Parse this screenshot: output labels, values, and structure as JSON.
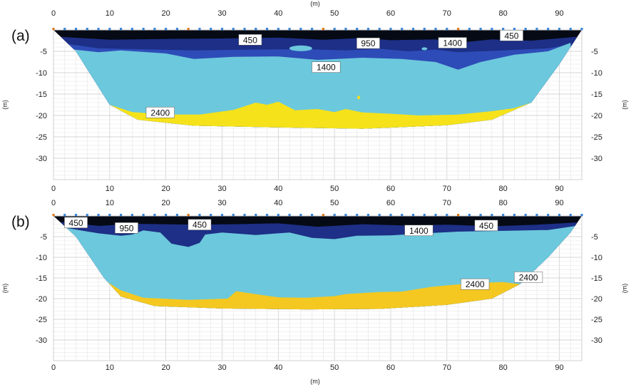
{
  "chart_data": [
    {
      "type": "area",
      "panel_label": "(a)",
      "top_axis_label": "(m)",
      "bottom_axis_label": "",
      "left_axis_label": "(m)",
      "right_axis_label": "(m)",
      "x_ticks": [
        0,
        10,
        20,
        30,
        40,
        50,
        60,
        70,
        80,
        90
      ],
      "y_ticks": [
        -5,
        -10,
        -15,
        -20,
        -25,
        -30
      ],
      "xlim": [
        0,
        94
      ],
      "ylim": [
        -35,
        0
      ],
      "grid": true,
      "layers": [
        {
          "velocity": 450,
          "color": "#050a14"
        },
        {
          "velocity": 950,
          "color": "#1d2f86"
        },
        {
          "velocity": 1400,
          "color": "#2e4cb8"
        },
        {
          "velocity": 1400,
          "color": "#6cc8dc"
        },
        {
          "velocity": 2400,
          "color": "#f6e21a"
        }
      ],
      "profile": {
        "surface": [
          [
            0,
            0
          ],
          [
            94,
            0
          ]
        ],
        "bottom": [
          [
            0,
            0
          ],
          [
            4,
            -5
          ],
          [
            10,
            -17.5
          ],
          [
            15,
            -21
          ],
          [
            25,
            -22.4
          ],
          [
            40,
            -22.8
          ],
          [
            55,
            -23.1
          ],
          [
            70,
            -22.3
          ],
          [
            78,
            -21
          ],
          [
            85,
            -17
          ],
          [
            90,
            -8
          ],
          [
            94,
            0
          ]
        ],
        "layer450_base": [
          [
            0,
            -1.5
          ],
          [
            10,
            -2.3
          ],
          [
            20,
            -2.1
          ],
          [
            30,
            -2
          ],
          [
            40,
            -1.8
          ],
          [
            48,
            -2.3
          ],
          [
            55,
            -1.9
          ],
          [
            60,
            -2.4
          ],
          [
            68,
            -2.2
          ],
          [
            72,
            -3
          ],
          [
            78,
            -2.2
          ],
          [
            85,
            -2.5
          ],
          [
            94,
            -1.5
          ]
        ],
        "layer950_base": [
          [
            1,
            -3
          ],
          [
            8,
            -4.3
          ],
          [
            15,
            -4.5
          ],
          [
            25,
            -4.8
          ],
          [
            35,
            -4.6
          ],
          [
            45,
            -4.5
          ],
          [
            52,
            -4.8
          ],
          [
            58,
            -4.4
          ],
          [
            63,
            -5
          ],
          [
            68,
            -4.6
          ],
          [
            72,
            -5.2
          ],
          [
            80,
            -4.8
          ],
          [
            88,
            -4.3
          ],
          [
            94,
            -3
          ]
        ],
        "layer1400a_base": [
          [
            3,
            -4.5
          ],
          [
            8,
            -5.2
          ],
          [
            12,
            -4.8
          ],
          [
            20,
            -5.5
          ],
          [
            25,
            -6.8
          ],
          [
            32,
            -6.3
          ],
          [
            40,
            -6.2
          ],
          [
            47,
            -7
          ],
          [
            55,
            -6.5
          ],
          [
            62,
            -6.8
          ],
          [
            68,
            -7.5
          ],
          [
            72,
            -9.3
          ],
          [
            76,
            -7.5
          ],
          [
            82,
            -5.8
          ],
          [
            88,
            -5
          ],
          [
            92,
            -3
          ]
        ],
        "layer2400_top": [
          [
            10,
            -17.5
          ],
          [
            14,
            -19.2
          ],
          [
            20,
            -19.8
          ],
          [
            26,
            -19.8
          ],
          [
            32,
            -18.7
          ],
          [
            36,
            -17
          ],
          [
            38,
            -17.5
          ],
          [
            40,
            -16.8
          ],
          [
            43,
            -18.8
          ],
          [
            47,
            -18.5
          ],
          [
            50,
            -19.2
          ],
          [
            52,
            -18.5
          ],
          [
            55,
            -19.3
          ],
          [
            60,
            -19.6
          ],
          [
            65,
            -20
          ],
          [
            72,
            -19.8
          ],
          [
            78,
            -19
          ],
          [
            82,
            -18.3
          ],
          [
            85,
            -17
          ]
        ]
      },
      "labels": [
        {
          "text": "450",
          "x": 35,
          "y": -2.3
        },
        {
          "text": "950",
          "x": 56,
          "y": -3.1
        },
        {
          "text": "1400",
          "x": 71,
          "y": -3
        },
        {
          "text": "450",
          "x": 81.5,
          "y": -1.3
        },
        {
          "text": "1400",
          "x": 48.5,
          "y": -8.7
        },
        {
          "text": "2400",
          "x": 19,
          "y": -19.3
        }
      ]
    },
    {
      "type": "area",
      "panel_label": "(b)",
      "top_axis_label": "",
      "bottom_axis_label": "(m)",
      "left_axis_label": "(m)",
      "right_axis_label": "(m)",
      "x_ticks": [
        0,
        10,
        20,
        30,
        40,
        50,
        60,
        70,
        80,
        90
      ],
      "y_ticks": [
        -5,
        -10,
        -15,
        -20,
        -25,
        -30
      ],
      "xlim": [
        0,
        94
      ],
      "ylim": [
        -35,
        0
      ],
      "grid": true,
      "layers": [
        {
          "velocity": 450,
          "color": "#050a14"
        },
        {
          "velocity": 950,
          "color": "#1d2f86"
        },
        {
          "velocity": 1400,
          "color": "#2e4cb8"
        },
        {
          "velocity": 1400,
          "color": "#6cc8dc"
        },
        {
          "velocity": 2400,
          "color": "#f4c820"
        }
      ],
      "profile": {
        "surface": [
          [
            0,
            0
          ],
          [
            94,
            0
          ]
        ],
        "bottom": [
          [
            0,
            0
          ],
          [
            4,
            -5
          ],
          [
            9,
            -15
          ],
          [
            12,
            -19.5
          ],
          [
            18,
            -21.8
          ],
          [
            30,
            -22.4
          ],
          [
            45,
            -22.6
          ],
          [
            58,
            -22.5
          ],
          [
            70,
            -21.5
          ],
          [
            78,
            -20
          ],
          [
            83,
            -16.5
          ],
          [
            88,
            -10
          ],
          [
            92,
            -4
          ],
          [
            94,
            0
          ]
        ],
        "layer450_base": [
          [
            0,
            -1.3
          ],
          [
            8,
            -2.4
          ],
          [
            15,
            -1.9
          ],
          [
            25,
            -2.1
          ],
          [
            32,
            -2
          ],
          [
            40,
            -1.8
          ],
          [
            47,
            -2.6
          ],
          [
            55,
            -2
          ],
          [
            62,
            -2.3
          ],
          [
            70,
            -2.1
          ],
          [
            78,
            -2.5
          ],
          [
            86,
            -2.1
          ],
          [
            94,
            -1.5
          ]
        ],
        "layer950_base": [
          [
            1,
            -2.6
          ],
          [
            8,
            -4.2
          ],
          [
            12,
            -4.8
          ],
          [
            14,
            -4.5
          ],
          [
            16,
            -3.5
          ],
          [
            19,
            -4
          ],
          [
            21,
            -6.7
          ],
          [
            24,
            -7.5
          ],
          [
            26,
            -6.5
          ],
          [
            27,
            -4.5
          ],
          [
            30,
            -4
          ],
          [
            36,
            -4.6
          ],
          [
            42,
            -4
          ],
          [
            46,
            -5.3
          ],
          [
            50,
            -5.6
          ],
          [
            54,
            -4.8
          ],
          [
            60,
            -4.7
          ],
          [
            66,
            -4.2
          ],
          [
            72,
            -3.8
          ],
          [
            80,
            -3.6
          ],
          [
            88,
            -3.4
          ],
          [
            94,
            -2.2
          ]
        ],
        "layer2400_top": [
          [
            9,
            -15.5
          ],
          [
            12,
            -18
          ],
          [
            16,
            -19.8
          ],
          [
            24,
            -20.3
          ],
          [
            31,
            -20
          ],
          [
            32.5,
            -18.2
          ],
          [
            35,
            -18.7
          ],
          [
            40,
            -19.7
          ],
          [
            45,
            -19.8
          ],
          [
            50,
            -19.4
          ],
          [
            52,
            -18.9
          ],
          [
            58,
            -18.4
          ],
          [
            62,
            -18.3
          ],
          [
            67,
            -17.2
          ],
          [
            70,
            -16.8
          ],
          [
            75,
            -16.2
          ],
          [
            80,
            -16
          ],
          [
            83,
            -16.5
          ]
        ]
      },
      "labels": [
        {
          "text": "450",
          "x": 4,
          "y": -1.6
        },
        {
          "text": "950",
          "x": 13,
          "y": -2.9
        },
        {
          "text": "450",
          "x": 26,
          "y": -2.1
        },
        {
          "text": "1400",
          "x": 65,
          "y": -3.5
        },
        {
          "text": "450",
          "x": 77,
          "y": -2.3
        },
        {
          "text": "2400",
          "x": 75,
          "y": -16.5
        },
        {
          "text": "2400",
          "x": 84.5,
          "y": -14.8
        }
      ]
    }
  ]
}
